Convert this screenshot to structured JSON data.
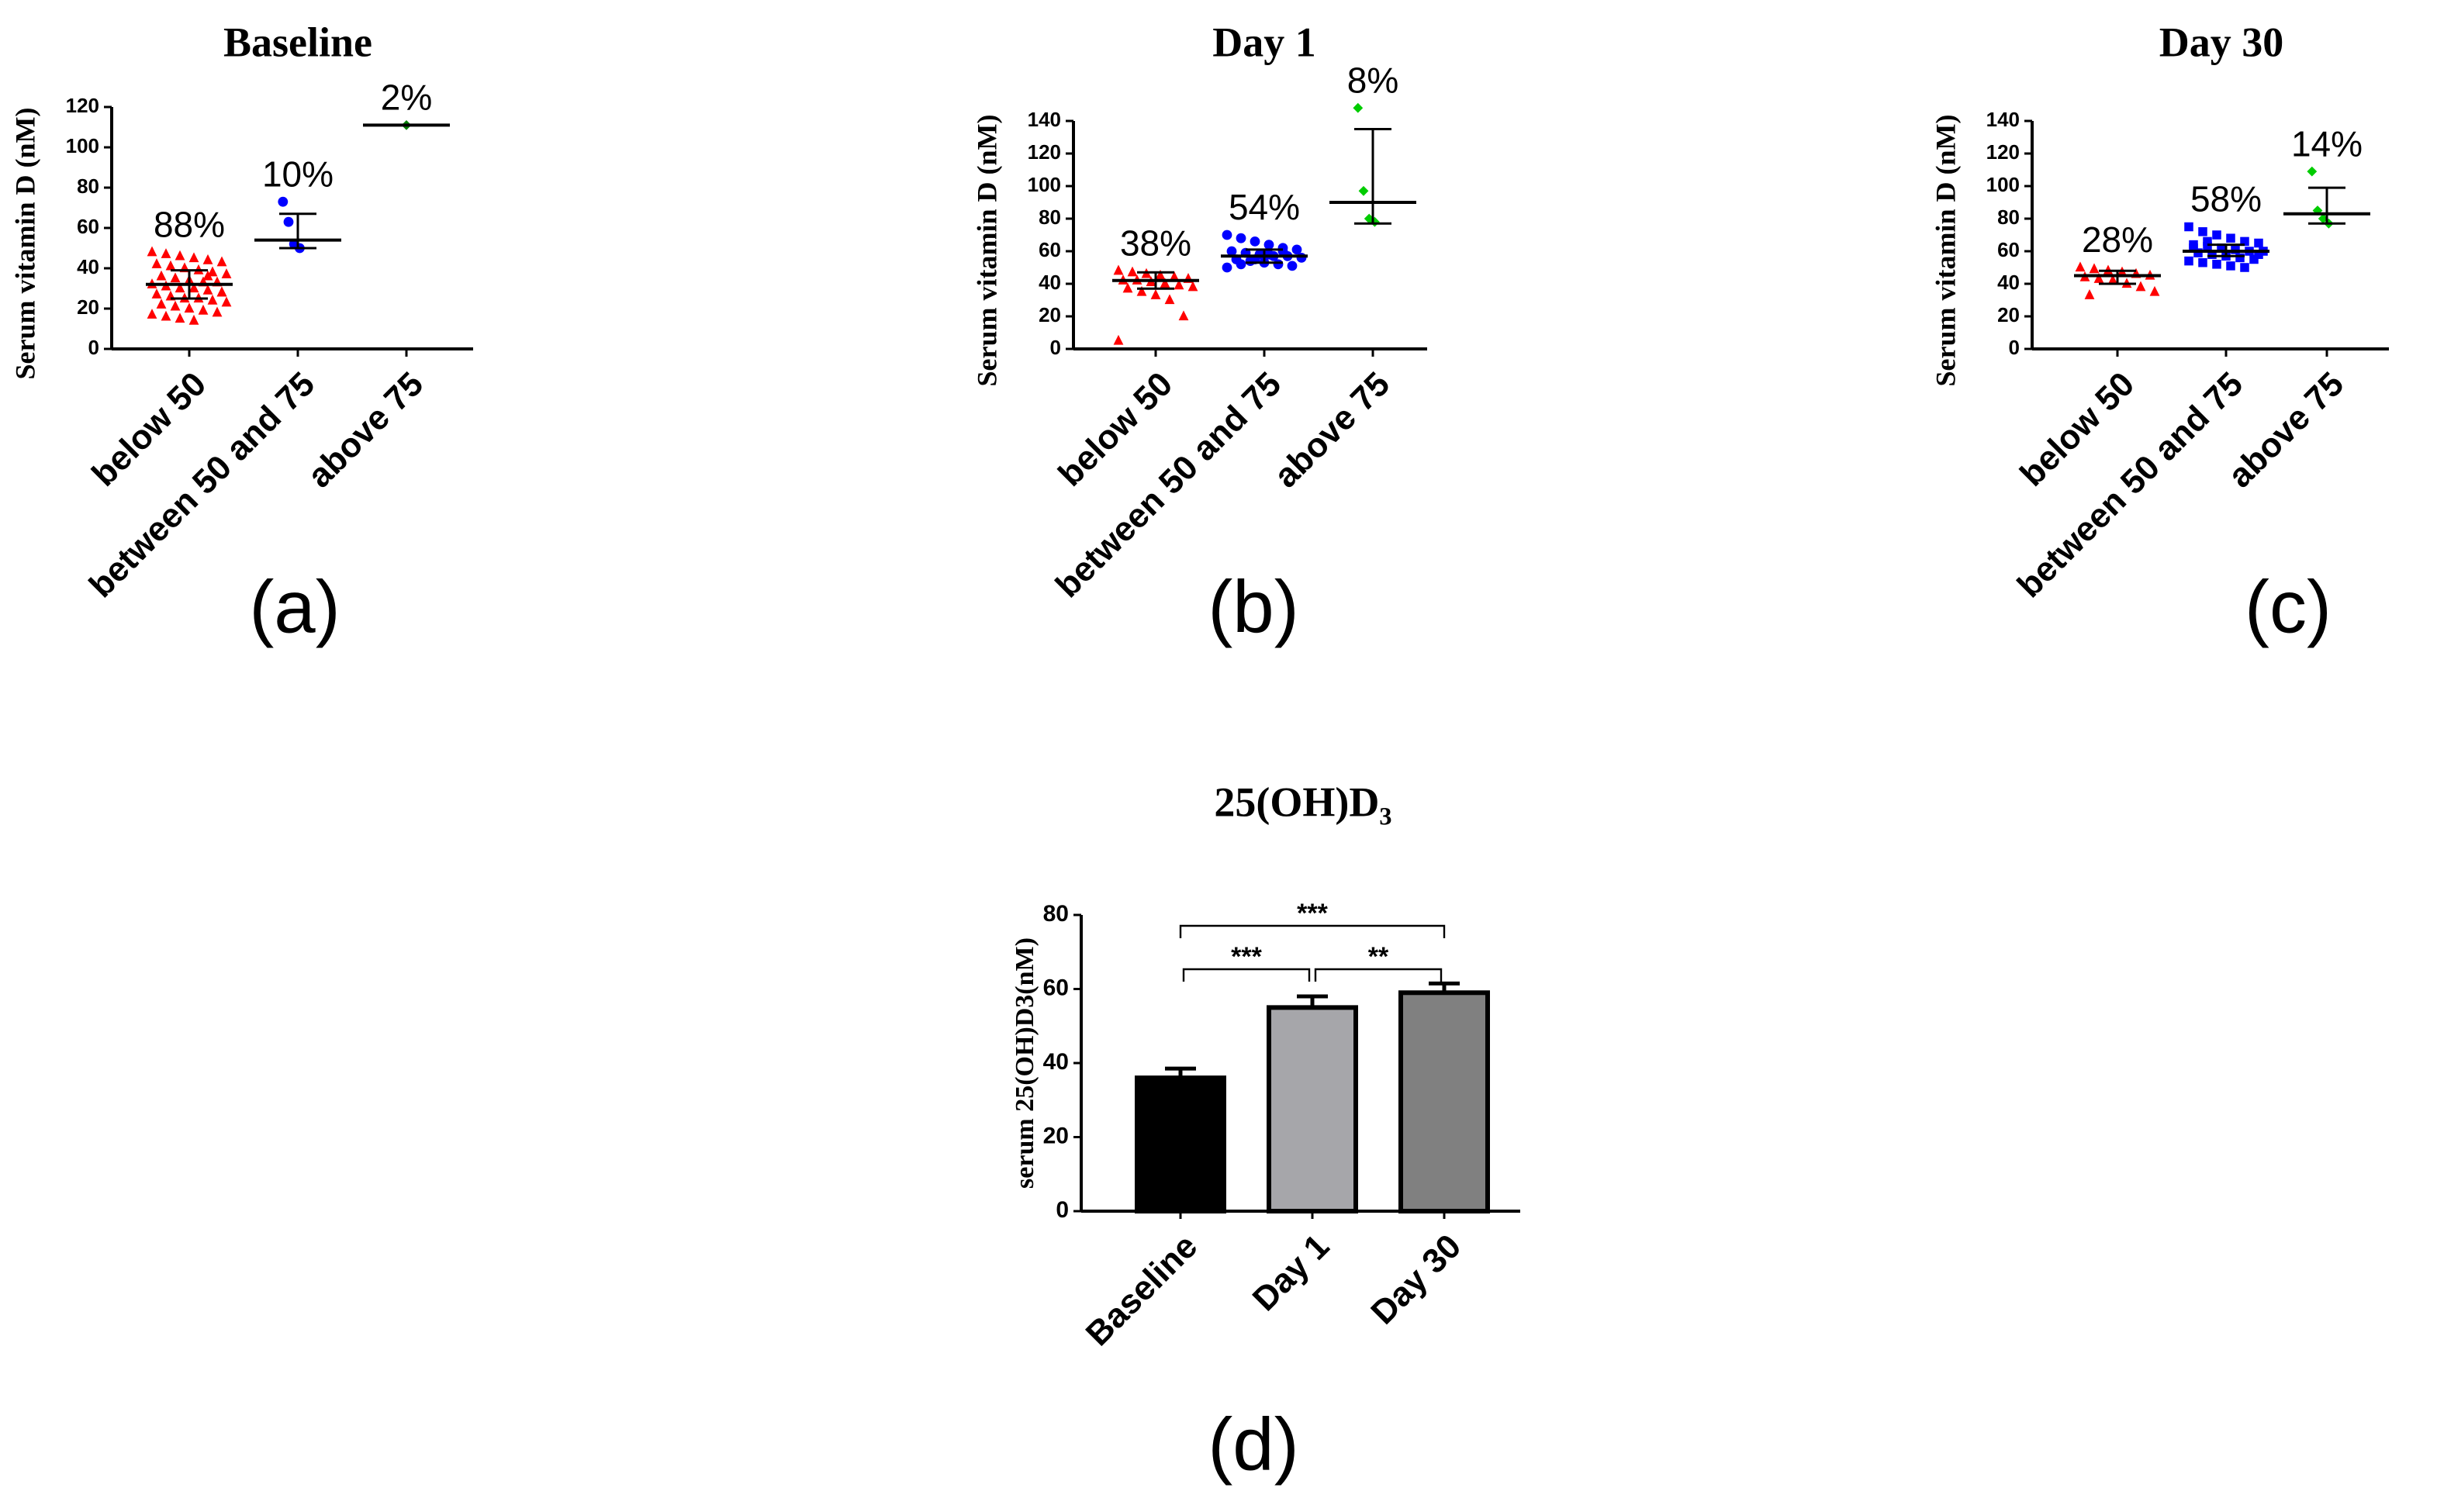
{
  "chart_data": [
    {
      "type": "dot",
      "title": "Baseline",
      "y_label": "Serum vitamin D (nM)",
      "panel_label": "(a)",
      "categories": [
        "below 50",
        "between 50 and 75",
        "above 75"
      ],
      "ylim": [
        0,
        120
      ],
      "yticks": [
        0,
        20,
        40,
        60,
        80,
        100,
        120
      ],
      "groups": [
        {
          "color": "#ff0000",
          "marker": "triangle",
          "annotation": "88%",
          "mean": 32,
          "low": 25,
          "high": 39,
          "points": [
            48,
            47,
            46,
            45,
            44,
            43,
            42,
            41,
            40,
            39,
            38,
            37,
            36,
            35,
            34,
            33,
            33,
            32,
            31,
            30,
            30,
            29,
            28,
            27,
            26,
            25,
            25,
            24,
            23,
            22,
            21,
            20,
            19,
            18,
            17,
            16,
            15,
            14,
            36,
            28
          ]
        },
        {
          "color": "#0000ff",
          "marker": "circle",
          "annotation": "10%",
          "mean": 54,
          "low": 50,
          "high": 67,
          "points": [
            73,
            63,
            52,
            50
          ]
        },
        {
          "color": "#008000",
          "marker": "diamond",
          "annotation": "2%",
          "mean": 111,
          "low": 111,
          "high": 111,
          "points": [
            111
          ]
        }
      ]
    },
    {
      "type": "dot",
      "title": "Day 1",
      "y_label": "Serum vitamin D (nM)",
      "panel_label": "(b)",
      "categories": [
        "below 50",
        "between 50 and 75",
        "above 75"
      ],
      "ylim": [
        0,
        140
      ],
      "yticks": [
        0,
        20,
        40,
        60,
        80,
        100,
        120,
        140
      ],
      "groups": [
        {
          "color": "#ff0000",
          "marker": "triangle",
          "annotation": "38%",
          "mean": 42,
          "low": 37,
          "high": 47,
          "points": [
            48,
            47,
            46,
            45,
            44,
            43,
            42,
            42,
            41,
            40,
            39,
            38,
            37,
            35,
            33,
            30,
            20,
            5
          ]
        },
        {
          "color": "#0000ff",
          "marker": "circle",
          "annotation": "54%",
          "mean": 57,
          "low": 53,
          "high": 61,
          "points": [
            70,
            68,
            66,
            64,
            62,
            61,
            60,
            59,
            58,
            57,
            57,
            56,
            55,
            54,
            53,
            52,
            51,
            50,
            52,
            55,
            58,
            60
          ]
        },
        {
          "color": "#00cc00",
          "marker": "diamond",
          "annotation": "8%",
          "mean": 90,
          "low": 77,
          "high": 135,
          "points": [
            148,
            97,
            80,
            78
          ]
        }
      ]
    },
    {
      "type": "dot",
      "title": "Day 30",
      "y_label": "Serum vitamin D (nM)",
      "panel_label": "(c)",
      "categories": [
        "below 50",
        "between 50 and 75",
        "above 75"
      ],
      "ylim": [
        0,
        140
      ],
      "yticks": [
        0,
        20,
        40,
        60,
        80,
        100,
        120,
        140
      ],
      "groups": [
        {
          "color": "#ff0000",
          "marker": "triangle",
          "annotation": "28%",
          "mean": 45,
          "low": 40,
          "high": 48,
          "points": [
            50,
            49,
            48,
            47,
            46,
            45,
            44,
            43,
            42,
            40,
            38,
            35,
            33
          ]
        },
        {
          "color": "#0000ff",
          "marker": "square",
          "annotation": "58%",
          "mean": 60,
          "low": 57,
          "high": 64,
          "points": [
            75,
            72,
            70,
            68,
            66,
            65,
            64,
            63,
            62,
            61,
            60,
            60,
            59,
            58,
            57,
            56,
            55,
            54,
            53,
            52,
            51,
            50,
            58,
            62,
            66
          ]
        },
        {
          "color": "#00cc00",
          "marker": "diamond",
          "annotation": "14%",
          "mean": 83,
          "low": 77,
          "high": 99,
          "points": [
            109,
            85,
            80,
            77
          ]
        }
      ]
    },
    {
      "type": "bar",
      "title": "25(OH)D₃",
      "y_label": "serum 25(OH)D3(nM)",
      "panel_label": "(d)",
      "categories": [
        "Baseline",
        "Day 1",
        "Day 30"
      ],
      "values": [
        36,
        55,
        59
      ],
      "errors": [
        2.5,
        3,
        2.5
      ],
      "colors": [
        "#000000",
        "#a6a6aa",
        "#808080"
      ],
      "ylim": [
        0,
        80
      ],
      "yticks": [
        0,
        20,
        40,
        60,
        80
      ],
      "brackets": [
        {
          "from": 0,
          "to": 1,
          "label": "***"
        },
        {
          "from": 1,
          "to": 2,
          "label": "**"
        },
        {
          "from": 0,
          "to": 2,
          "label": "***"
        }
      ]
    }
  ]
}
